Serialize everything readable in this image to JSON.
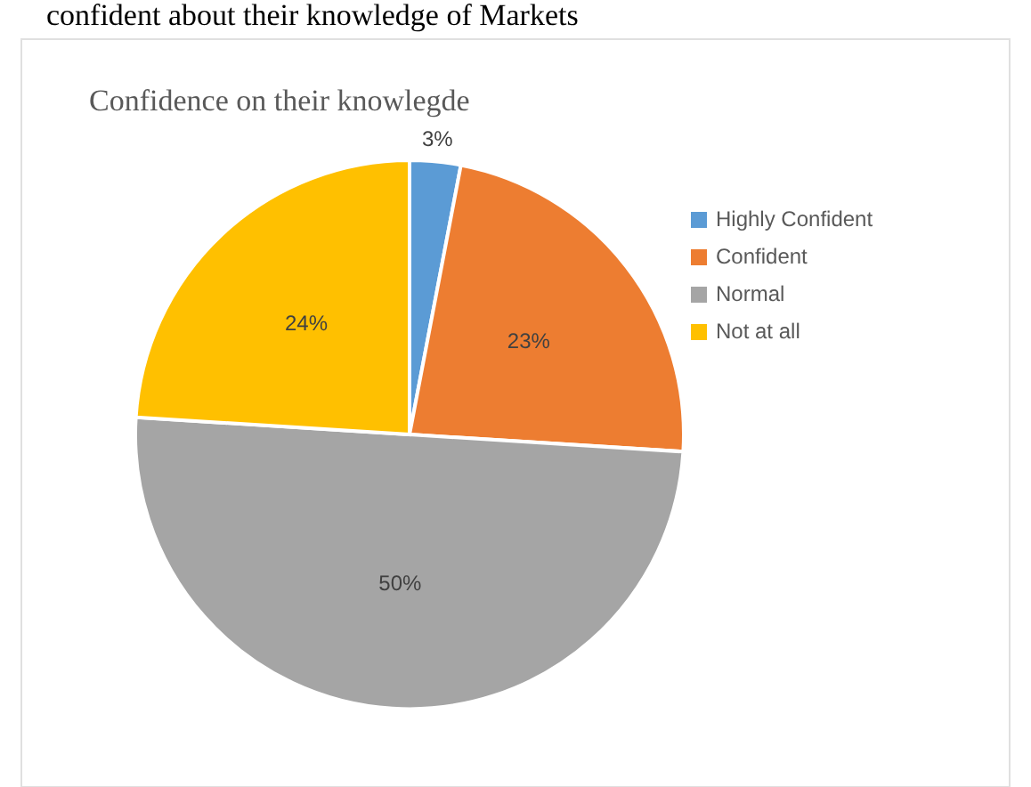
{
  "chart_data": {
    "type": "pie",
    "title": "Confidence on their knowlegde",
    "annotations": [
      "confident about their knowledge of Markets"
    ],
    "categories": [
      "Highly Confident",
      "Confident",
      "Normal",
      "Not at all"
    ],
    "values": [
      3,
      23,
      50,
      24
    ],
    "value_labels": [
      "3%",
      "23%",
      "50%",
      "24%"
    ],
    "colors": [
      "#5b9bd5",
      "#ed7d31",
      "#a5a5a5",
      "#ffc000"
    ],
    "legend": "right"
  }
}
